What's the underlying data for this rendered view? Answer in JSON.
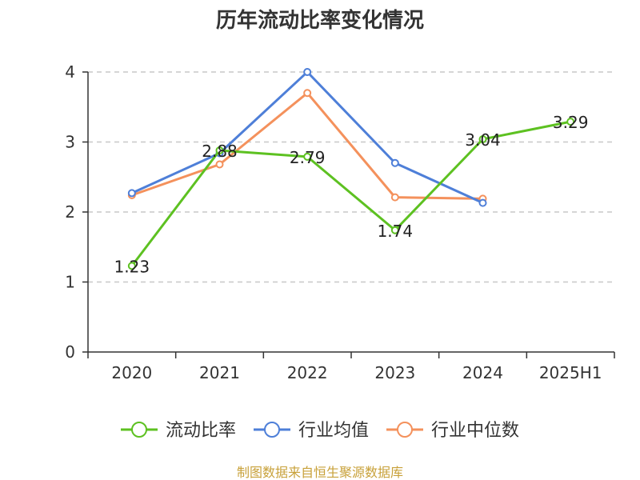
{
  "chart_data": {
    "type": "line",
    "title": "历年流动比率变化情况",
    "categories": [
      "2020",
      "2021",
      "2022",
      "2023",
      "2024",
      "2025H1"
    ],
    "ylim": [
      0,
      4
    ],
    "yticks": [
      "0",
      "1",
      "2",
      "3",
      "4"
    ],
    "grid": true,
    "legend_position": "bottom",
    "series": [
      {
        "name": "流动比率",
        "color": "#5dc121",
        "values": [
          1.23,
          2.88,
          2.79,
          1.74,
          3.04,
          3.29
        ],
        "labels": [
          "1.23",
          "2.88",
          "2.79",
          "1.74",
          "3.04",
          "3.29"
        ]
      },
      {
        "name": "行业均值",
        "color": "#4e7fd8",
        "values": [
          2.27,
          2.84,
          4.0,
          2.7,
          2.13,
          null
        ]
      },
      {
        "name": "行业中位数",
        "color": "#f4915c",
        "values": [
          2.24,
          2.68,
          3.7,
          2.21,
          2.19,
          null
        ]
      }
    ]
  },
  "source_text": "制图数据来自恒生聚源数据库"
}
